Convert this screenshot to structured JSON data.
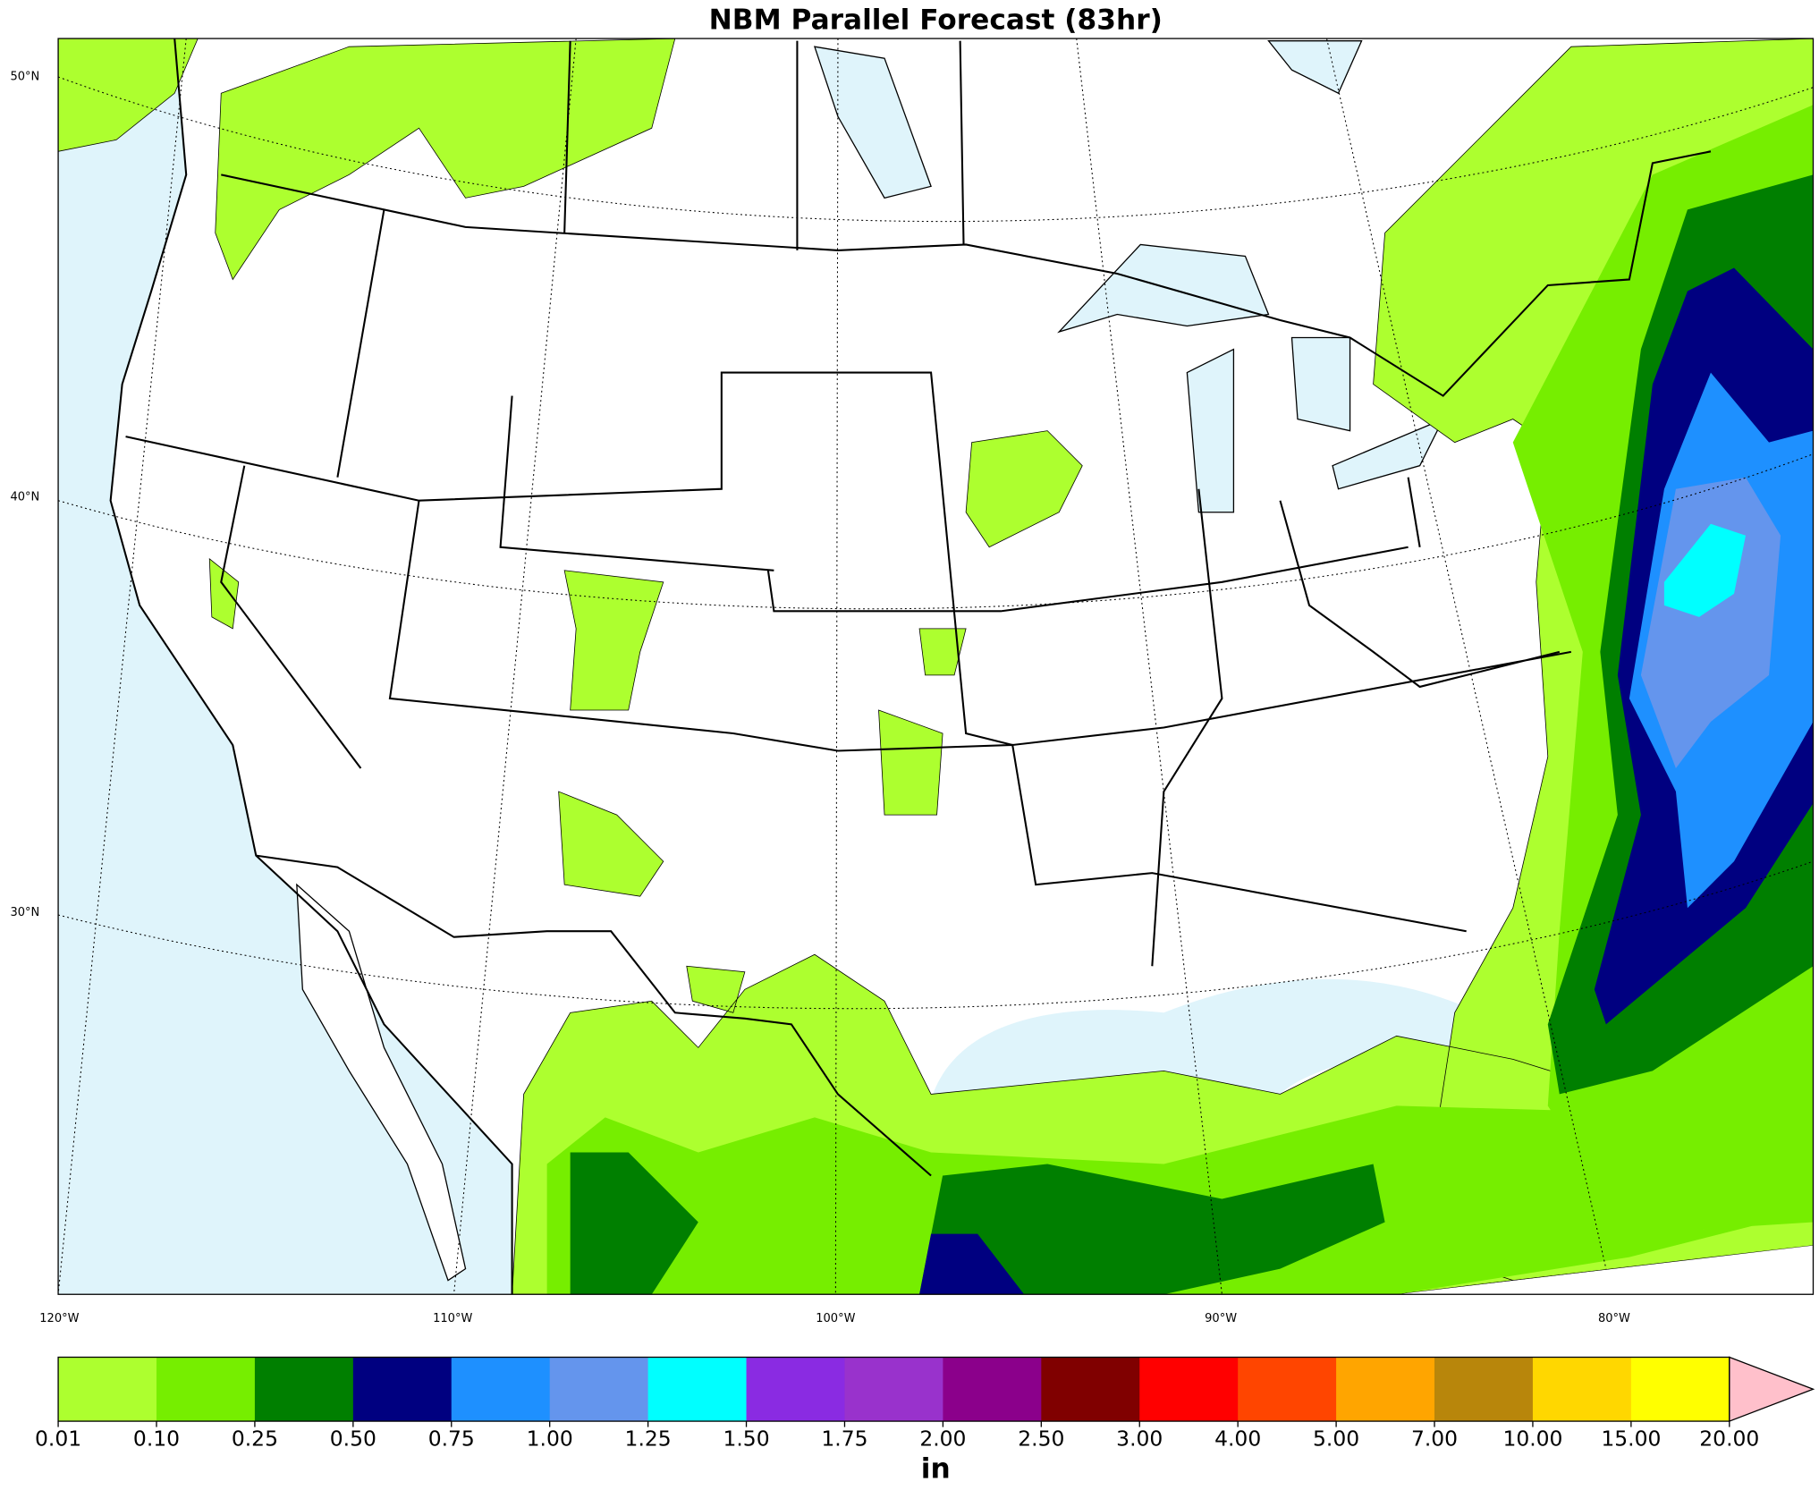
{
  "title": "NBM Parallel Forecast (83hr)",
  "map": {
    "lat_labels": [
      "50°N",
      "40°N",
      "30°N"
    ],
    "lon_labels": [
      "120°W",
      "110°W",
      "100°W",
      "90°W",
      "80°W"
    ]
  },
  "colorbar": {
    "unit": "in",
    "ticks": [
      "0.01",
      "0.10",
      "0.25",
      "0.50",
      "0.75",
      "1.00",
      "1.25",
      "1.50",
      "1.75",
      "2.00",
      "2.50",
      "3.00",
      "4.00",
      "5.00",
      "7.00",
      "10.00",
      "15.00",
      "20.00"
    ],
    "colors": [
      "#adff2f",
      "#76ee00",
      "#007f00",
      "#000080",
      "#1e90ff",
      "#6495ed",
      "#00ffff",
      "#8a2be2",
      "#9932cc",
      "#8b008b",
      "#800000",
      "#ff0000",
      "#ff4500",
      "#ffa500",
      "#b8860b",
      "#ffd700",
      "#ffff00"
    ],
    "extend_color": "#ffc0cb"
  }
}
